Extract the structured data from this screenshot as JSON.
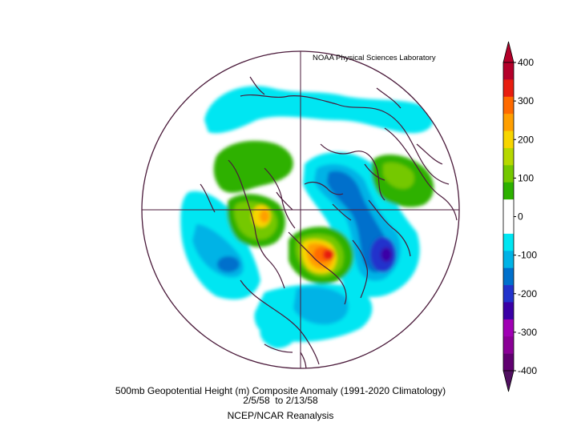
{
  "credit": "NOAA Physical Sciences Laboratory",
  "caption": {
    "line1": "500mb Geopotential Height (m) Composite Anomaly (1991-2020 Climatology)",
    "line2": "2/5/58  to 2/13/58",
    "line3": "NCEP/NCAR Reanalysis"
  },
  "colorbar": {
    "labels": [
      "400",
      "300",
      "200",
      "100",
      "0",
      "-100",
      "-200",
      "-300",
      "-400"
    ],
    "colors": [
      "#b4002a",
      "#e81e10",
      "#ff6a00",
      "#ff9f00",
      "#f7d500",
      "#b6d800",
      "#74c800",
      "#2db100",
      "#ffffff",
      "#ffffff",
      "#00e6f2",
      "#00b3e6",
      "#0070cc",
      "#2233cc",
      "#3a00a6",
      "#a000b4",
      "#8a0096",
      "#600070"
    ],
    "top_arrow": "#b4002a",
    "bottom_arrow": "#501060"
  },
  "map": {
    "projection": "north-polar-stereographic",
    "outline_color": "#4a1a3a"
  }
}
